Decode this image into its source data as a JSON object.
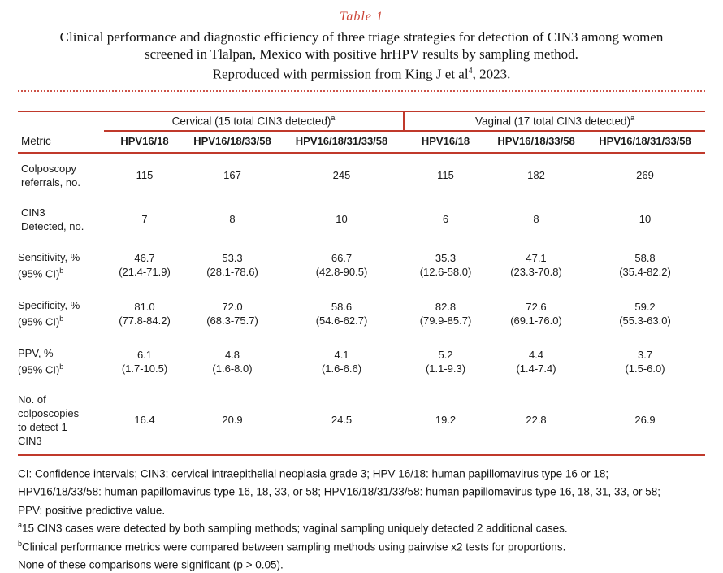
{
  "colors": {
    "accent_red": "#c0392b",
    "dotted_line_red": "#cd5247"
  },
  "header": {
    "table_label": "Table 1",
    "caption_line1": "Clinical performance and diagnostic efficiency of three triage strategies for detection of CIN3 among women",
    "caption_line2": "screened in Tlalpan, Mexico with positive hrHPV results by sampling method.",
    "caption_line3_pre": "Reproduced with permission from King J et al",
    "caption_line3_sup": "4",
    "caption_line3_post": ", 2023."
  },
  "table": {
    "group_headers": [
      {
        "text": "Cervical (15 total CIN3 detected)",
        "sup": "a"
      },
      {
        "text": "Vaginal (17 total CIN3 detected)",
        "sup": "a"
      }
    ],
    "metric_header": "Metric",
    "col_headers": [
      "HPV16/18",
      "HPV16/18/33/58",
      "HPV16/18/31/33/58",
      "HPV16/18",
      "HPV16/18/33/58",
      "HPV16/18/31/33/58"
    ],
    "rows": [
      {
        "label1": "Colposcopy",
        "label2": "referrals, no.",
        "values": [
          "115",
          "167",
          "245",
          "115",
          "182",
          "269"
        ]
      },
      {
        "label1": "CIN3",
        "label2": "Detected, no.",
        "values": [
          "7",
          "8",
          "10",
          "6",
          "8",
          "10"
        ]
      },
      {
        "label1": "Sensitivity, %",
        "label2": "(95% CI)",
        "label_sup": "b",
        "values": [
          "46.7",
          "53.3",
          "66.7",
          "35.3",
          "47.1",
          "58.8"
        ],
        "ci": [
          "(21.4-71.9)",
          "(28.1-78.6)",
          "(42.8-90.5)",
          "(12.6-58.0)",
          "(23.3-70.8)",
          "(35.4-82.2)"
        ]
      },
      {
        "label1": "Specificity, %",
        "label2": "(95% CI)",
        "label_sup": "b",
        "values": [
          "81.0",
          "72.0",
          "58.6",
          "82.8",
          "72.6",
          "59.2"
        ],
        "ci": [
          "(77.8-84.2)",
          "(68.3-75.7)",
          "(54.6-62.7)",
          "(79.9-85.7)",
          "(69.1-76.0)",
          "(55.3-63.0)"
        ]
      },
      {
        "label1": "PPV, %",
        "label2": "(95% CI)",
        "label_sup": "b",
        "values": [
          "6.1",
          "4.8",
          "4.1",
          "5.2",
          "4.4",
          "3.7"
        ],
        "ci": [
          "(1.7-10.5)",
          "(1.6-8.0)",
          "(1.6-6.6)",
          "(1.1-9.3)",
          "(1.4-7.4)",
          "(1.5-6.0)"
        ]
      },
      {
        "label_lines": [
          "No. of",
          "colposcopies",
          "to detect 1",
          "CIN3"
        ],
        "values": [
          "16.4",
          "20.9",
          "24.5",
          "19.2",
          "22.8",
          "26.9"
        ]
      }
    ]
  },
  "footnotes": {
    "lines": [
      {
        "text": "CI: Confidence intervals; CIN3: cervical intraepithelial neoplasia grade 3; HPV 16/18: human papillomavirus type 16 or 18;"
      },
      {
        "text": "HPV16/18/33/58: human papillomavirus type 16, 18, 33, or 58; HPV16/18/31/33/58: human papillomavirus type 16, 18, 31, 33, or 58;"
      },
      {
        "text": "PPV: positive predictive value."
      },
      {
        "sup": "a",
        "text": "15 CIN3 cases were detected by both sampling methods; vaginal sampling uniquely detected 2 additional cases."
      },
      {
        "sup": "b",
        "text": "Clinical performance metrics were compared between sampling methods using pairwise x2 tests for proportions."
      },
      {
        "text": "None of these comparisons were significant (p > 0.05)."
      }
    ]
  }
}
